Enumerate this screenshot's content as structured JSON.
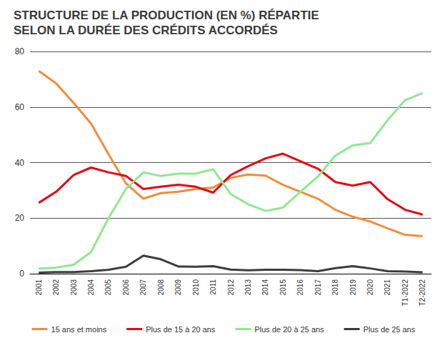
{
  "chart_data": {
    "type": "line",
    "title": "STRUCTURE DE LA PRODUCTION (EN %) RÉPARTIE\nSELON LA DURÉE DES CRÉDITS ACCORDÉS",
    "categories": [
      "2001",
      "2002",
      "2003",
      "2004",
      "2005",
      "2006",
      "2007",
      "2008",
      "2009",
      "2010",
      "2011",
      "2012",
      "2013",
      "2014",
      "2015",
      "2016",
      "2017",
      "2018",
      "2019",
      "2020",
      "2021",
      "T1-2022",
      "T2-2022"
    ],
    "series": [
      {
        "name": "15 ans et moins",
        "color": "#f28c3c",
        "values": [
          73,
          68.5,
          61.5,
          54,
          43,
          32.5,
          27,
          29,
          29.5,
          30.5,
          31,
          34.5,
          35.7,
          35.3,
          32,
          29.5,
          27,
          23,
          20.5,
          18.8,
          16.3,
          14,
          13.5
        ]
      },
      {
        "name": "Plus de 15 à 20 ans",
        "color": "#e30613",
        "values": [
          25.5,
          29.5,
          35.5,
          38.2,
          36.5,
          35.2,
          30.5,
          31.3,
          32,
          31.3,
          29.2,
          35.5,
          38.7,
          41.5,
          43.2,
          40.5,
          37.8,
          33,
          31.7,
          33,
          26.8,
          23,
          21.3
        ]
      },
      {
        "name": "Plus de 20 à 25 ans",
        "color": "#8fe88f",
        "values": [
          1.8,
          2.2,
          3.2,
          7.8,
          20,
          30.5,
          36.5,
          35.2,
          36,
          36,
          37.6,
          28.7,
          25,
          22.6,
          23.8,
          29.5,
          35,
          42.5,
          46.2,
          47,
          55.3,
          62.5,
          65
        ]
      },
      {
        "name": "Plus de 25 ans",
        "color": "#3c3c3c",
        "values": [
          0.4,
          0.6,
          0.6,
          0.9,
          1.4,
          2.5,
          6.5,
          5.2,
          2.6,
          2.5,
          2.7,
          1.5,
          1.2,
          1.4,
          1.4,
          1.3,
          0.9,
          2.0,
          2.7,
          1.9,
          0.9,
          0.8,
          0.5
        ]
      }
    ],
    "ylim": [
      0,
      80
    ],
    "yticks": [
      0,
      20,
      40,
      60,
      80
    ],
    "grid": true,
    "legend": "bottom",
    "marker": "none"
  }
}
